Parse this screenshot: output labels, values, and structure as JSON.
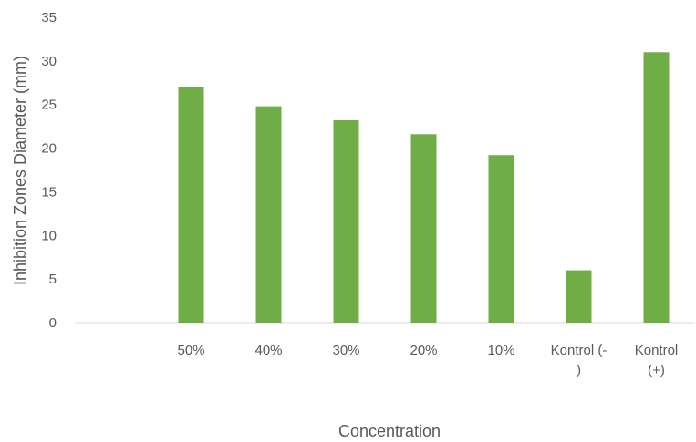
{
  "chart_data": {
    "type": "bar",
    "title": "",
    "xlabel": "Concentration",
    "ylabel": "Inhibition Zones Diameter (mm)",
    "ylim": [
      0,
      35
    ],
    "yticks": [
      "0",
      "5",
      "10",
      "15",
      "20",
      "25",
      "30",
      "35"
    ],
    "categories": [
      "",
      "50%",
      "40%",
      "30%",
      "20%",
      "10%",
      "Kontrol (-\n)",
      "Kontrol\n(+)"
    ],
    "values": [
      null,
      27,
      24.8,
      23.2,
      21.6,
      19.2,
      6,
      31
    ],
    "bar_color": "#70ad47",
    "axis_color": "#d9d9d9",
    "gridlines": false,
    "legend": "none"
  }
}
